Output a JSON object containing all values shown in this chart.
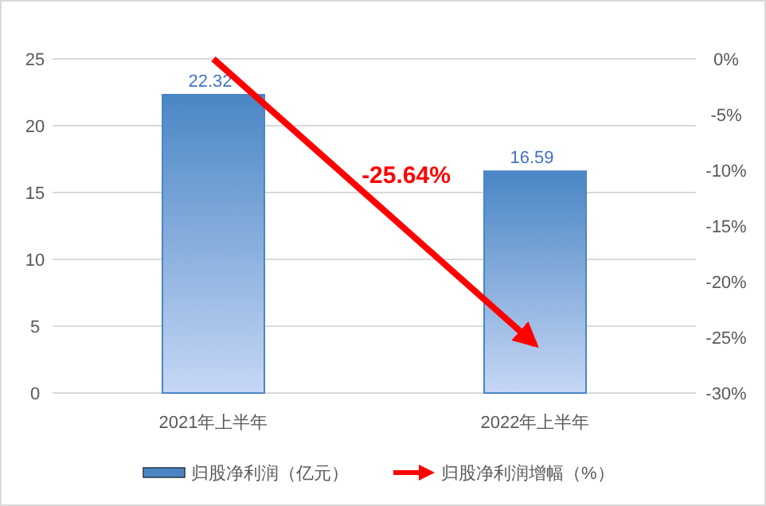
{
  "chart_data": {
    "type": "bar",
    "categories": [
      "2021年上半年",
      "2022年上半年"
    ],
    "series": [
      {
        "name": "归股净利润（亿元）",
        "color": "#4a86c5",
        "values": [
          22.32,
          16.59
        ],
        "value_labels": [
          "22.32",
          "16.59"
        ]
      },
      {
        "name": "归股净利润增幅（%）",
        "type": "line",
        "axis": "y2",
        "color": "#ff0000",
        "values": [
          0,
          -25.64
        ]
      }
    ],
    "ylim": [
      0,
      25
    ],
    "yticks": [
      0,
      5,
      10,
      15,
      20,
      25
    ],
    "y2lim": [
      -30,
      0
    ],
    "y2ticks": [
      {
        "value": 0,
        "label": "0%"
      },
      {
        "value": -5,
        "label": "-5%"
      },
      {
        "value": -10,
        "label": "-10%"
      },
      {
        "value": -15,
        "label": "-15%"
      },
      {
        "value": -20,
        "label": "-20%"
      },
      {
        "value": -25,
        "label": "-25%"
      },
      {
        "value": -30,
        "label": "-30%"
      }
    ],
    "grid": "y",
    "legend": "bottom",
    "annotations": [
      "-25.64%"
    ]
  }
}
